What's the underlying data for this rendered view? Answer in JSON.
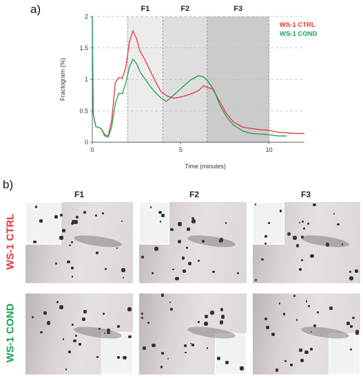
{
  "labels": {
    "panel_a": "a)",
    "panel_b": "b)"
  },
  "chart_data": {
    "type": "line",
    "xlabel": "Time (minutes)",
    "ylabel": "Fractogram (%)",
    "xlim": [
      0,
      12
    ],
    "ylim": [
      0,
      2
    ],
    "x_ticks": [
      "0",
      "5",
      "10"
    ],
    "y_ticks": [
      "0",
      "0.5",
      "1",
      "1.5",
      "2"
    ],
    "grid": "horizontal dashed",
    "legend_placement": "top-right",
    "fractions": [
      {
        "label": "F1",
        "start": 2.0,
        "end": 4.0,
        "shade": "#ececec"
      },
      {
        "label": "F2",
        "start": 4.0,
        "end": 6.5,
        "shade": "#dedede"
      },
      {
        "label": "F3",
        "start": 6.5,
        "end": 10.0,
        "shade": "#cbcbcb"
      }
    ],
    "series": [
      {
        "name": "WS-1 CTRL",
        "color": "#e8323a",
        "x": [
          0,
          0.05,
          0.2,
          0.5,
          0.7,
          0.9,
          1.1,
          1.3,
          1.5,
          1.7,
          1.9,
          2.1,
          2.3,
          2.5,
          2.7,
          3.0,
          3.3,
          3.6,
          3.9,
          4.2,
          4.6,
          5.0,
          5.5,
          6.0,
          6.3,
          6.5,
          6.8,
          7.2,
          7.6,
          8.0,
          8.5,
          9.0,
          9.5,
          10.0,
          10.5,
          11.0,
          11.5,
          12.0
        ],
        "values": [
          2.0,
          0.45,
          0.25,
          0.22,
          0.12,
          0.1,
          0.35,
          0.95,
          1.03,
          1.02,
          1.2,
          1.6,
          1.77,
          1.65,
          1.45,
          1.3,
          1.12,
          0.95,
          0.8,
          0.74,
          0.7,
          0.72,
          0.76,
          0.82,
          0.9,
          0.87,
          0.85,
          0.65,
          0.45,
          0.32,
          0.24,
          0.22,
          0.2,
          0.19,
          0.16,
          0.15,
          0.14,
          0.14
        ]
      },
      {
        "name": "WS-1 COND",
        "color": "#17a052",
        "x": [
          0,
          0.05,
          0.2,
          0.5,
          0.7,
          0.9,
          1.1,
          1.3,
          1.5,
          1.7,
          1.9,
          2.1,
          2.3,
          2.5,
          2.7,
          3.0,
          3.3,
          3.6,
          3.9,
          4.2,
          4.6,
          5.0,
          5.5,
          6.0,
          6.3,
          6.6,
          6.9,
          7.2,
          7.6,
          8.0,
          8.5,
          9.0,
          9.5,
          10.0,
          10.5,
          11.0
        ],
        "values": [
          2.0,
          0.45,
          0.25,
          0.22,
          0.1,
          0.08,
          0.25,
          0.62,
          0.78,
          0.77,
          0.95,
          1.2,
          1.32,
          1.25,
          1.12,
          1.0,
          0.88,
          0.78,
          0.7,
          0.65,
          0.75,
          0.85,
          0.98,
          1.06,
          1.04,
          0.95,
          0.82,
          0.6,
          0.4,
          0.27,
          0.18,
          0.14,
          0.13,
          0.12,
          0.1,
          0.1
        ]
      }
    ]
  },
  "micrographs": {
    "columns": [
      "F1",
      "F2",
      "F3"
    ],
    "rows": [
      {
        "label": "WS-1 CTRL",
        "color": "#e8323a"
      },
      {
        "label": "WS-1 COND",
        "color": "#17a052"
      }
    ]
  }
}
